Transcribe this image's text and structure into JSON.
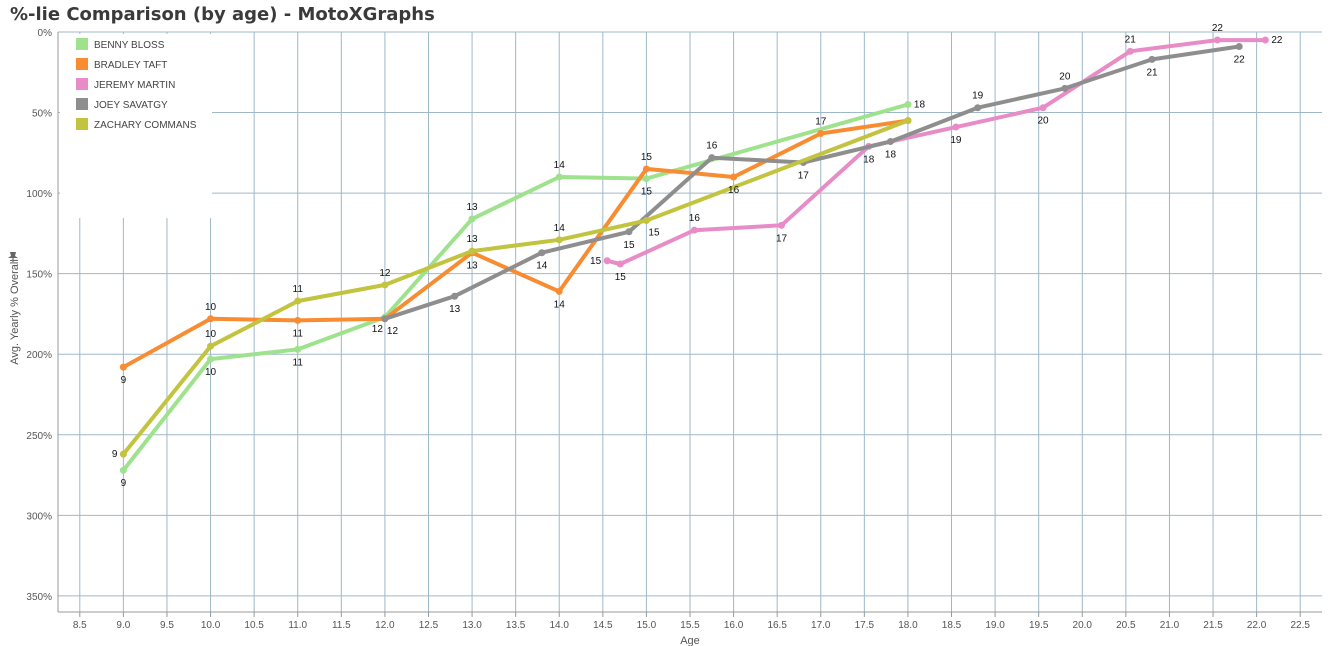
{
  "title": "%-lie Comparison (by age) - MotoXGraphs",
  "chart_data": {
    "type": "line",
    "xlabel": "Age",
    "ylabel": "Avg. Yearly % Overall",
    "xlim": [
      8.25,
      22.75
    ],
    "ylim": [
      0,
      360
    ],
    "y_reversed": true,
    "grid": true,
    "legend_position": "top-left",
    "x_ticks": [
      "8.5",
      "9.0",
      "9.5",
      "10.0",
      "10.5",
      "11.0",
      "11.5",
      "12.0",
      "12.5",
      "13.0",
      "13.5",
      "14.0",
      "14.5",
      "15.0",
      "15.5",
      "16.0",
      "16.5",
      "17.0",
      "17.5",
      "18.0",
      "18.5",
      "19.0",
      "19.5",
      "20.0",
      "20.5",
      "21.0",
      "21.5",
      "22.0",
      "22.5"
    ],
    "y_ticks": [
      {
        "value": 0,
        "label": "0%"
      },
      {
        "value": 50,
        "label": "50%"
      },
      {
        "value": 100,
        "label": "100%"
      },
      {
        "value": 150,
        "label": "150%"
      },
      {
        "value": 200,
        "label": "200%"
      },
      {
        "value": 250,
        "label": "250%"
      },
      {
        "value": 300,
        "label": "300%"
      },
      {
        "value": 350,
        "label": "350%"
      }
    ],
    "series": [
      {
        "name": "BENNY BLOSS",
        "color": "#9fe28d",
        "points": [
          {
            "x": 9.0,
            "y": 272,
            "label": "9",
            "pos": "below"
          },
          {
            "x": 10.0,
            "y": 203,
            "label": "10",
            "pos": "below"
          },
          {
            "x": 11.0,
            "y": 197,
            "label": "11",
            "pos": "below"
          },
          {
            "x": 12.0,
            "y": 177,
            "label": "12",
            "pos": "below-left"
          },
          {
            "x": 13.0,
            "y": 116,
            "label": "13",
            "pos": "above"
          },
          {
            "x": 14.0,
            "y": 90,
            "label": "14",
            "pos": "above"
          },
          {
            "x": 15.0,
            "y": 91,
            "label": "15",
            "pos": "below"
          },
          {
            "x": 18.0,
            "y": 45,
            "label": "18",
            "pos": "right"
          }
        ]
      },
      {
        "name": "BRADLEY TAFT",
        "color": "#f88c32",
        "points": [
          {
            "x": 9.0,
            "y": 208,
            "label": "9",
            "pos": "below"
          },
          {
            "x": 10.0,
            "y": 178,
            "label": "10",
            "pos": "above"
          },
          {
            "x": 11.0,
            "y": 179,
            "label": "11",
            "pos": "below"
          },
          {
            "x": 12.0,
            "y": 178,
            "label": "12",
            "pos": "below-right"
          },
          {
            "x": 13.0,
            "y": 137,
            "label": "13",
            "pos": "below"
          },
          {
            "x": 14.0,
            "y": 161,
            "label": "14",
            "pos": "below"
          },
          {
            "x": 15.0,
            "y": 85,
            "label": "15",
            "pos": "above"
          },
          {
            "x": 16.0,
            "y": 90,
            "label": "16",
            "pos": "below"
          },
          {
            "x": 17.0,
            "y": 63,
            "label": "17",
            "pos": "above"
          },
          {
            "x": 18.0,
            "y": 55,
            "label": "",
            "pos": "none"
          }
        ]
      },
      {
        "name": "JEREMY MARTIN",
        "color": "#e88cc8",
        "points": [
          {
            "x": 14.55,
            "y": 142,
            "label": "15",
            "pos": "left"
          },
          {
            "x": 14.7,
            "y": 144,
            "label": "15",
            "pos": "below"
          },
          {
            "x": 15.55,
            "y": 123,
            "label": "16",
            "pos": "above"
          },
          {
            "x": 16.55,
            "y": 120,
            "label": "17",
            "pos": "below"
          },
          {
            "x": 17.55,
            "y": 71,
            "label": "18",
            "pos": "below"
          },
          {
            "x": 18.55,
            "y": 59,
            "label": "19",
            "pos": "below"
          },
          {
            "x": 19.55,
            "y": 47,
            "label": "20",
            "pos": "below"
          },
          {
            "x": 20.55,
            "y": 12,
            "label": "21",
            "pos": "above"
          },
          {
            "x": 21.55,
            "y": 5,
            "label": "22",
            "pos": "above"
          },
          {
            "x": 22.1,
            "y": 5,
            "label": "22",
            "pos": "right"
          }
        ]
      },
      {
        "name": "JOEY SAVATGY",
        "color": "#8e8e8e",
        "points": [
          {
            "x": 12.0,
            "y": 178,
            "label": "",
            "pos": "none"
          },
          {
            "x": 12.8,
            "y": 164,
            "label": "13",
            "pos": "below"
          },
          {
            "x": 13.8,
            "y": 137,
            "label": "14",
            "pos": "below"
          },
          {
            "x": 14.8,
            "y": 124,
            "label": "15",
            "pos": "below"
          },
          {
            "x": 15.75,
            "y": 78,
            "label": "16",
            "pos": "above"
          },
          {
            "x": 16.8,
            "y": 81,
            "label": "17",
            "pos": "below"
          },
          {
            "x": 17.8,
            "y": 68,
            "label": "18",
            "pos": "below"
          },
          {
            "x": 18.8,
            "y": 47,
            "label": "19",
            "pos": "above"
          },
          {
            "x": 19.8,
            "y": 35,
            "label": "20",
            "pos": "above"
          },
          {
            "x": 20.8,
            "y": 17,
            "label": "21",
            "pos": "below"
          },
          {
            "x": 21.8,
            "y": 9,
            "label": "22",
            "pos": "below"
          }
        ]
      },
      {
        "name": "ZACHARY COMMANS",
        "color": "#c2c33e",
        "points": [
          {
            "x": 9.0,
            "y": 262,
            "label": "9",
            "pos": "left"
          },
          {
            "x": 10.0,
            "y": 195,
            "label": "10",
            "pos": "above"
          },
          {
            "x": 11.0,
            "y": 167,
            "label": "11",
            "pos": "above"
          },
          {
            "x": 12.0,
            "y": 157,
            "label": "12",
            "pos": "above"
          },
          {
            "x": 13.0,
            "y": 136,
            "label": "13",
            "pos": "above"
          },
          {
            "x": 14.0,
            "y": 129,
            "label": "14",
            "pos": "above"
          },
          {
            "x": 15.0,
            "y": 117,
            "label": "15",
            "pos": "below-right"
          },
          {
            "x": 18.0,
            "y": 55,
            "label": "",
            "pos": "none"
          }
        ]
      }
    ]
  }
}
